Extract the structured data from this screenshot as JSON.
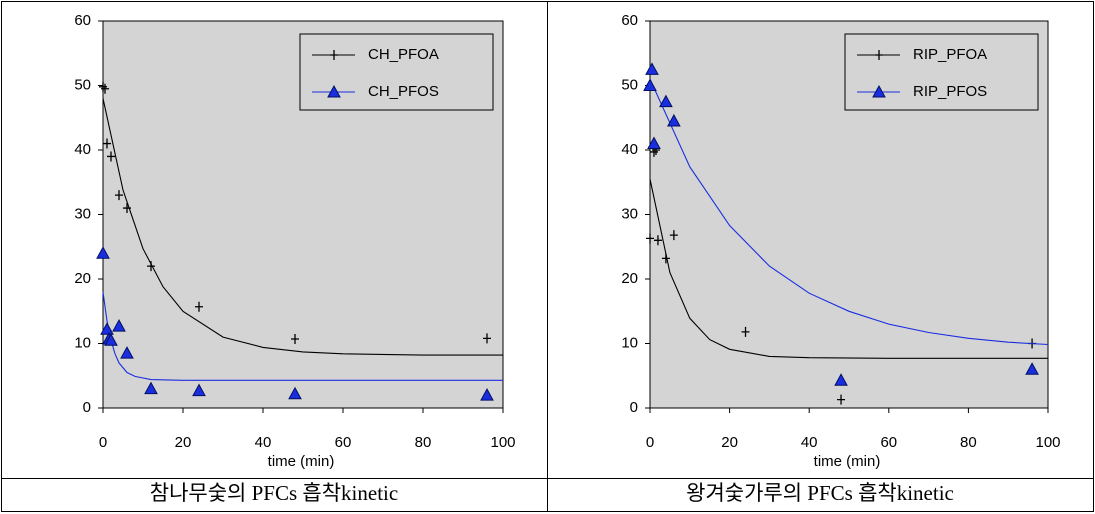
{
  "chart_data": [
    {
      "type": "scatter",
      "x_label": "time (min)",
      "caption": "참나무숯의 PFCs 흡착kinetic",
      "xlim": [
        0,
        100
      ],
      "ylim": [
        0,
        60
      ],
      "xticks": [
        0,
        20,
        40,
        60,
        80,
        100
      ],
      "yticks": [
        0,
        10,
        20,
        30,
        40,
        50,
        60
      ],
      "legend": "upper right",
      "series": [
        {
          "name": "CH_PFOA",
          "color": "#000000",
          "marker": "plus",
          "x": [
            0,
            0.5,
            1,
            2,
            4,
            6,
            12,
            24,
            48,
            96
          ],
          "values": [
            49.8,
            49.5,
            41,
            39,
            33,
            31,
            22,
            15.7,
            10.7,
            10.8
          ],
          "fit": {
            "x": [
              0,
              5,
              10,
              15,
              20,
              30,
              40,
              50,
              60,
              80,
              100
            ],
            "values": [
              48,
              33.8,
              24.7,
              18.8,
              15,
              11,
              9.4,
              8.7,
              8.4,
              8.2,
              8.2
            ]
          }
        },
        {
          "name": "CH_PFOS",
          "color": "#1a2ee0",
          "marker": "triangle",
          "x": [
            0,
            1,
            1.5,
            2,
            4,
            6,
            12,
            24,
            48,
            96
          ],
          "values": [
            24,
            12.2,
            10.7,
            10.5,
            12.7,
            8.5,
            3,
            2.7,
            2.2,
            2
          ],
          "fit": {
            "x": [
              0,
              1,
              2,
              3,
              4,
              6,
              8,
              12,
              20,
              100
            ],
            "values": [
              18,
              13.5,
              10.5,
              8.4,
              7,
              5.5,
              4.9,
              4.4,
              4.3,
              4.3
            ]
          }
        }
      ]
    },
    {
      "type": "scatter",
      "x_label": "time (min)",
      "caption": "왕겨숯가루의 PFCs 흡착kinetic",
      "xlim": [
        0,
        100
      ],
      "ylim": [
        0,
        60
      ],
      "xticks": [
        0,
        20,
        40,
        60,
        80,
        100
      ],
      "yticks": [
        0,
        10,
        20,
        30,
        40,
        50,
        60
      ],
      "legend": "upper right",
      "series": [
        {
          "name": "RIP_PFOA",
          "color": "#000000",
          "marker": "plus",
          "x": [
            0,
            1,
            1.5,
            2,
            4,
            6,
            24,
            48,
            96
          ],
          "values": [
            26.3,
            39.7,
            40,
            26,
            23.2,
            26.8,
            11.8,
            1.3,
            10
          ],
          "fit": {
            "x": [
              0,
              5,
              10,
              15,
              20,
              30,
              40,
              60,
              100
            ],
            "values": [
              35.5,
              21,
              13.9,
              10.6,
              9.1,
              8,
              7.8,
              7.7,
              7.7
            ]
          }
        },
        {
          "name": "RIP_PFOS",
          "color": "#1a2ee0",
          "marker": "triangle",
          "x": [
            0,
            0.5,
            1,
            4,
            6,
            48,
            96
          ],
          "values": [
            50,
            52.5,
            41,
            47.5,
            44.5,
            4.3,
            6
          ],
          "fit": {
            "x": [
              0,
              10,
              20,
              30,
              40,
              50,
              60,
              70,
              80,
              90,
              100
            ],
            "values": [
              51,
              37.4,
              28.3,
              22,
              17.8,
              15,
              13,
              11.7,
              10.8,
              10.2,
              9.85
            ]
          }
        }
      ]
    }
  ]
}
